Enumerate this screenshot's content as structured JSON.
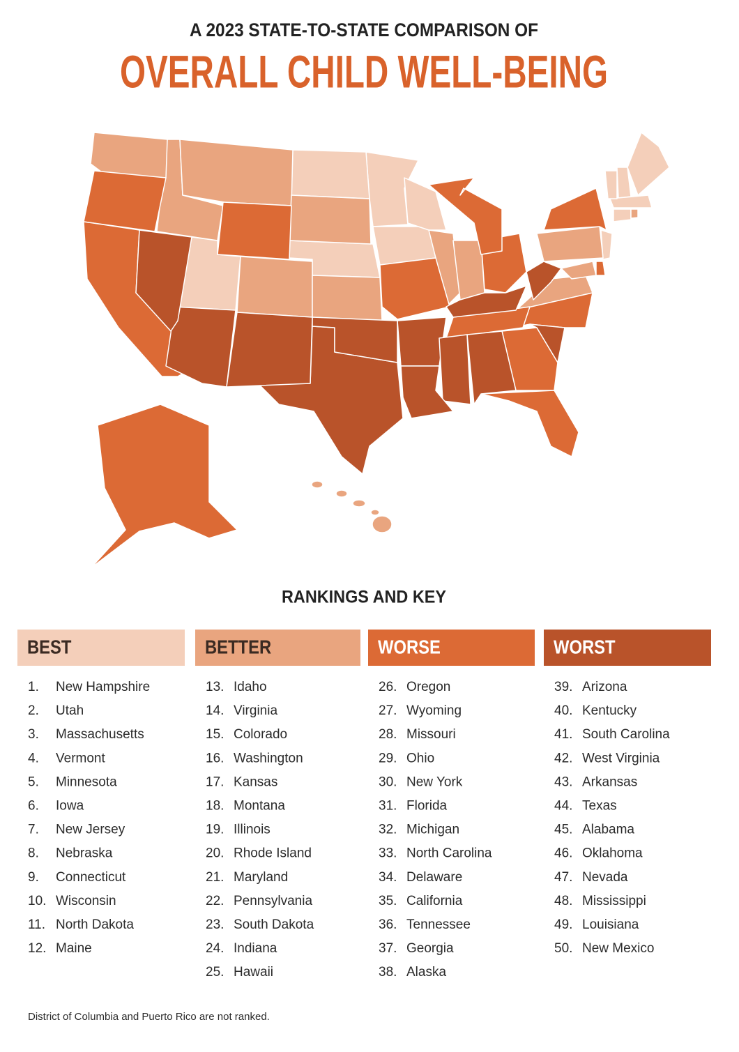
{
  "header": {
    "kicker": "A 2023 STATE-TO-STATE COMPARISON OF",
    "title": "OVERALL CHILD WELL-BEING"
  },
  "key_title": "RANKINGS AND KEY",
  "tiers": [
    {
      "name": "BEST",
      "color": "#f4cfba",
      "text_color": "#3a2a22",
      "items": [
        {
          "rank": "1.",
          "state": "New Hampshire"
        },
        {
          "rank": "2.",
          "state": "Utah"
        },
        {
          "rank": "3.",
          "state": "Massachusetts"
        },
        {
          "rank": "4.",
          "state": "Vermont"
        },
        {
          "rank": "5.",
          "state": "Minnesota"
        },
        {
          "rank": "6.",
          "state": "Iowa"
        },
        {
          "rank": "7.",
          "state": "New Jersey"
        },
        {
          "rank": "8.",
          "state": "Nebraska"
        },
        {
          "rank": "9.",
          "state": "Connecticut"
        },
        {
          "rank": "10.",
          "state": "Wisconsin"
        },
        {
          "rank": "11.",
          "state": "North Dakota"
        },
        {
          "rank": "12.",
          "state": "Maine"
        }
      ]
    },
    {
      "name": "BETTER",
      "color": "#e9a57f",
      "text_color": "#3a2a22",
      "items": [
        {
          "rank": "13.",
          "state": "Idaho"
        },
        {
          "rank": "14.",
          "state": "Virginia"
        },
        {
          "rank": "15.",
          "state": "Colorado"
        },
        {
          "rank": "16.",
          "state": "Washington"
        },
        {
          "rank": "17.",
          "state": "Kansas"
        },
        {
          "rank": "18.",
          "state": "Montana"
        },
        {
          "rank": "19.",
          "state": "Illinois"
        },
        {
          "rank": "20.",
          "state": "Rhode Island"
        },
        {
          "rank": "21.",
          "state": "Maryland"
        },
        {
          "rank": "22.",
          "state": "Pennsylvania"
        },
        {
          "rank": "23.",
          "state": "South Dakota"
        },
        {
          "rank": "24.",
          "state": "Indiana"
        },
        {
          "rank": "25.",
          "state": "Hawaii"
        }
      ]
    },
    {
      "name": "WORSE",
      "color": "#dc6a35",
      "text_color": "#ffffff",
      "items": [
        {
          "rank": "26.",
          "state": "Oregon"
        },
        {
          "rank": "27.",
          "state": "Wyoming"
        },
        {
          "rank": "28.",
          "state": "Missouri"
        },
        {
          "rank": "29.",
          "state": "Ohio"
        },
        {
          "rank": "30.",
          "state": "New York"
        },
        {
          "rank": "31.",
          "state": "Florida"
        },
        {
          "rank": "32.",
          "state": "Michigan"
        },
        {
          "rank": "33.",
          "state": "North Carolina"
        },
        {
          "rank": "34.",
          "state": "Delaware"
        },
        {
          "rank": "35.",
          "state": "California"
        },
        {
          "rank": "36.",
          "state": "Tennessee"
        },
        {
          "rank": "37.",
          "state": "Georgia"
        },
        {
          "rank": "38.",
          "state": "Alaska"
        }
      ]
    },
    {
      "name": "WORST",
      "color": "#b9532a",
      "text_color": "#ffffff",
      "items": [
        {
          "rank": "39.",
          "state": "Arizona"
        },
        {
          "rank": "40.",
          "state": "Kentucky"
        },
        {
          "rank": "41.",
          "state": "South Carolina"
        },
        {
          "rank": "42.",
          "state": "West Virginia"
        },
        {
          "rank": "43.",
          "state": "Arkansas"
        },
        {
          "rank": "44.",
          "state": "Texas"
        },
        {
          "rank": "45.",
          "state": "Alabama"
        },
        {
          "rank": "46.",
          "state": "Oklahoma"
        },
        {
          "rank": "47.",
          "state": "Nevada"
        },
        {
          "rank": "48.",
          "state": "Mississippi"
        },
        {
          "rank": "49.",
          "state": "Louisiana"
        },
        {
          "rank": "50.",
          "state": "New Mexico"
        }
      ]
    }
  ],
  "footnote": "District of Columbia and Puerto Rico are not ranked."
}
